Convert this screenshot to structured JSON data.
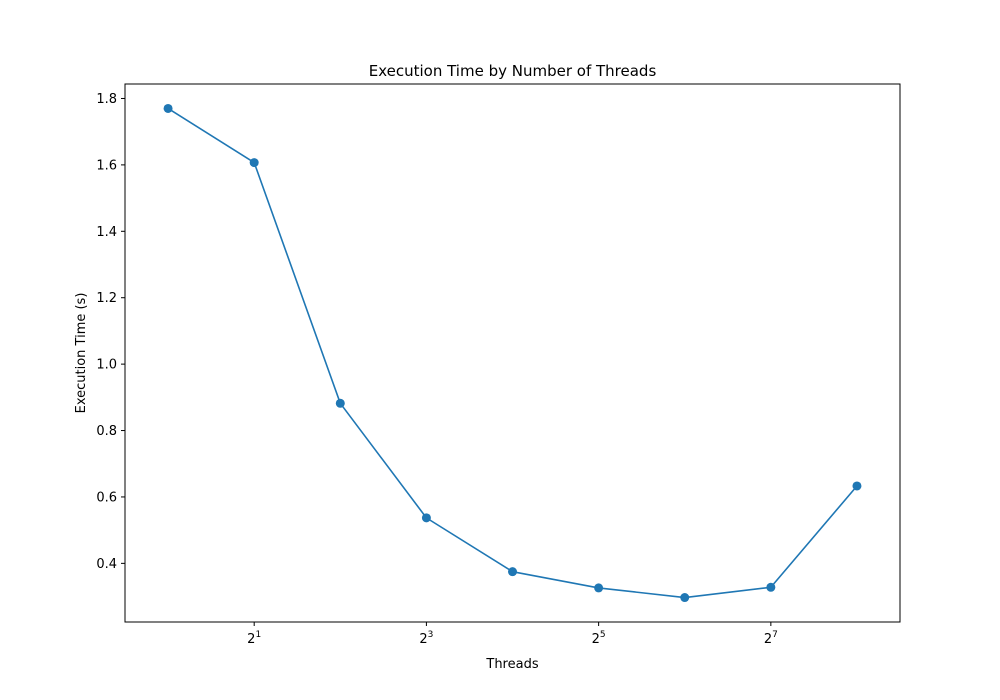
{
  "chart_data": {
    "type": "line",
    "title": "Execution Time by Number of Threads",
    "xlabel": "Threads",
    "ylabel": "Execution Time (s)",
    "x_scale": "log2",
    "x": [
      1,
      2,
      4,
      8,
      16,
      32,
      64,
      128,
      256
    ],
    "series": [
      {
        "values": [
          1.77,
          1.607,
          0.882,
          0.537,
          0.375,
          0.326,
          0.297,
          0.328,
          0.633
        ],
        "color": "#1f77b4",
        "marker": "circle"
      }
    ],
    "x_ticks": [
      {
        "value": 2,
        "base": "2",
        "exp": "1"
      },
      {
        "value": 8,
        "base": "2",
        "exp": "3"
      },
      {
        "value": 32,
        "base": "2",
        "exp": "5"
      },
      {
        "value": 128,
        "base": "2",
        "exp": "7"
      }
    ],
    "y_ticks": [
      "0.4",
      "0.6",
      "0.8",
      "1.0",
      "1.2",
      "1.4",
      "1.6",
      "1.8"
    ],
    "xlim": [
      0.707,
      362.0
    ],
    "ylim": [
      0.2234,
      1.8436
    ],
    "grid": false,
    "legend": "none"
  }
}
